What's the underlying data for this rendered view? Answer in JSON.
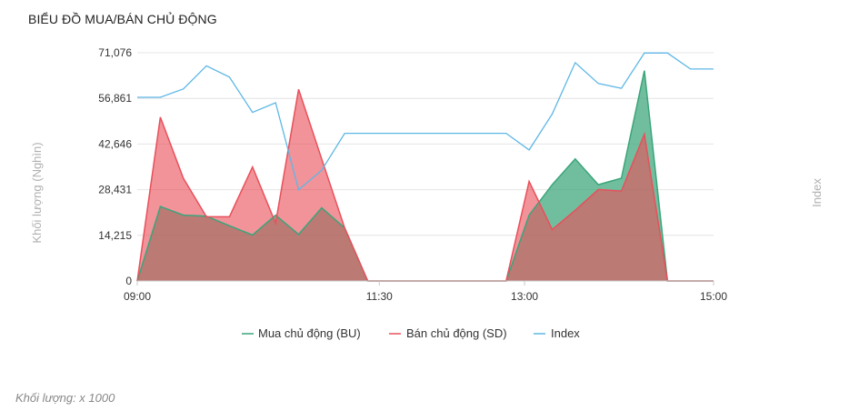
{
  "header": {
    "title": "BIỂU ĐỒ MUA/BÁN CHỦ ĐỘNG"
  },
  "footer": {
    "note": "Khối lượng: x 1000"
  },
  "chart_data": {
    "type": "area",
    "ylabel": "Khối lượng (Nghìn)",
    "y2label": "Index",
    "ylim": [
      0,
      71076
    ],
    "yticks": [
      0,
      14215,
      28431,
      42646,
      56861,
      71076
    ],
    "ytick_labels": [
      "0",
      "14,215",
      "28,431",
      "42,646",
      "56,861",
      "71,076"
    ],
    "xticks": [
      "09:00",
      "11:30",
      "13:00",
      "15:00"
    ],
    "xtick_positions": [
      0,
      10.5,
      16.8,
      25
    ],
    "x": [
      0,
      1,
      2,
      3,
      4,
      5,
      6,
      7,
      8,
      9,
      10,
      11,
      12,
      13,
      14,
      15,
      16,
      17,
      18,
      19,
      20,
      21,
      22,
      23,
      24,
      25
    ],
    "grid": true,
    "legend_position": "bottom",
    "colors": {
      "bu": "#3aa57a",
      "sd": "#e8505b",
      "index": "#5eb7e6"
    },
    "series": [
      {
        "name": "Mua chủ động (BU)",
        "values": [
          0,
          23200,
          20500,
          20200,
          17200,
          14300,
          20500,
          14500,
          22800,
          16500,
          0,
          0,
          0,
          0,
          0,
          0,
          0,
          20500,
          30000,
          38000,
          30000,
          32000,
          65500,
          0,
          0,
          0
        ]
      },
      {
        "name": "Bán chủ động (SD)",
        "values": [
          0,
          51000,
          32000,
          20000,
          20000,
          35500,
          18000,
          59700,
          38000,
          16500,
          0,
          0,
          0,
          0,
          0,
          0,
          0,
          31000,
          16000,
          22000,
          28500,
          28000,
          45700,
          0,
          0,
          0
        ]
      },
      {
        "name": "Index",
        "values": [
          57200,
          57200,
          59800,
          67000,
          63500,
          52500,
          55500,
          28400,
          34500,
          46000,
          46000,
          46000,
          46000,
          46000,
          46000,
          46000,
          46000,
          40800,
          52000,
          68000,
          61500,
          60000,
          71000,
          71000,
          66000,
          66000
        ]
      }
    ]
  }
}
